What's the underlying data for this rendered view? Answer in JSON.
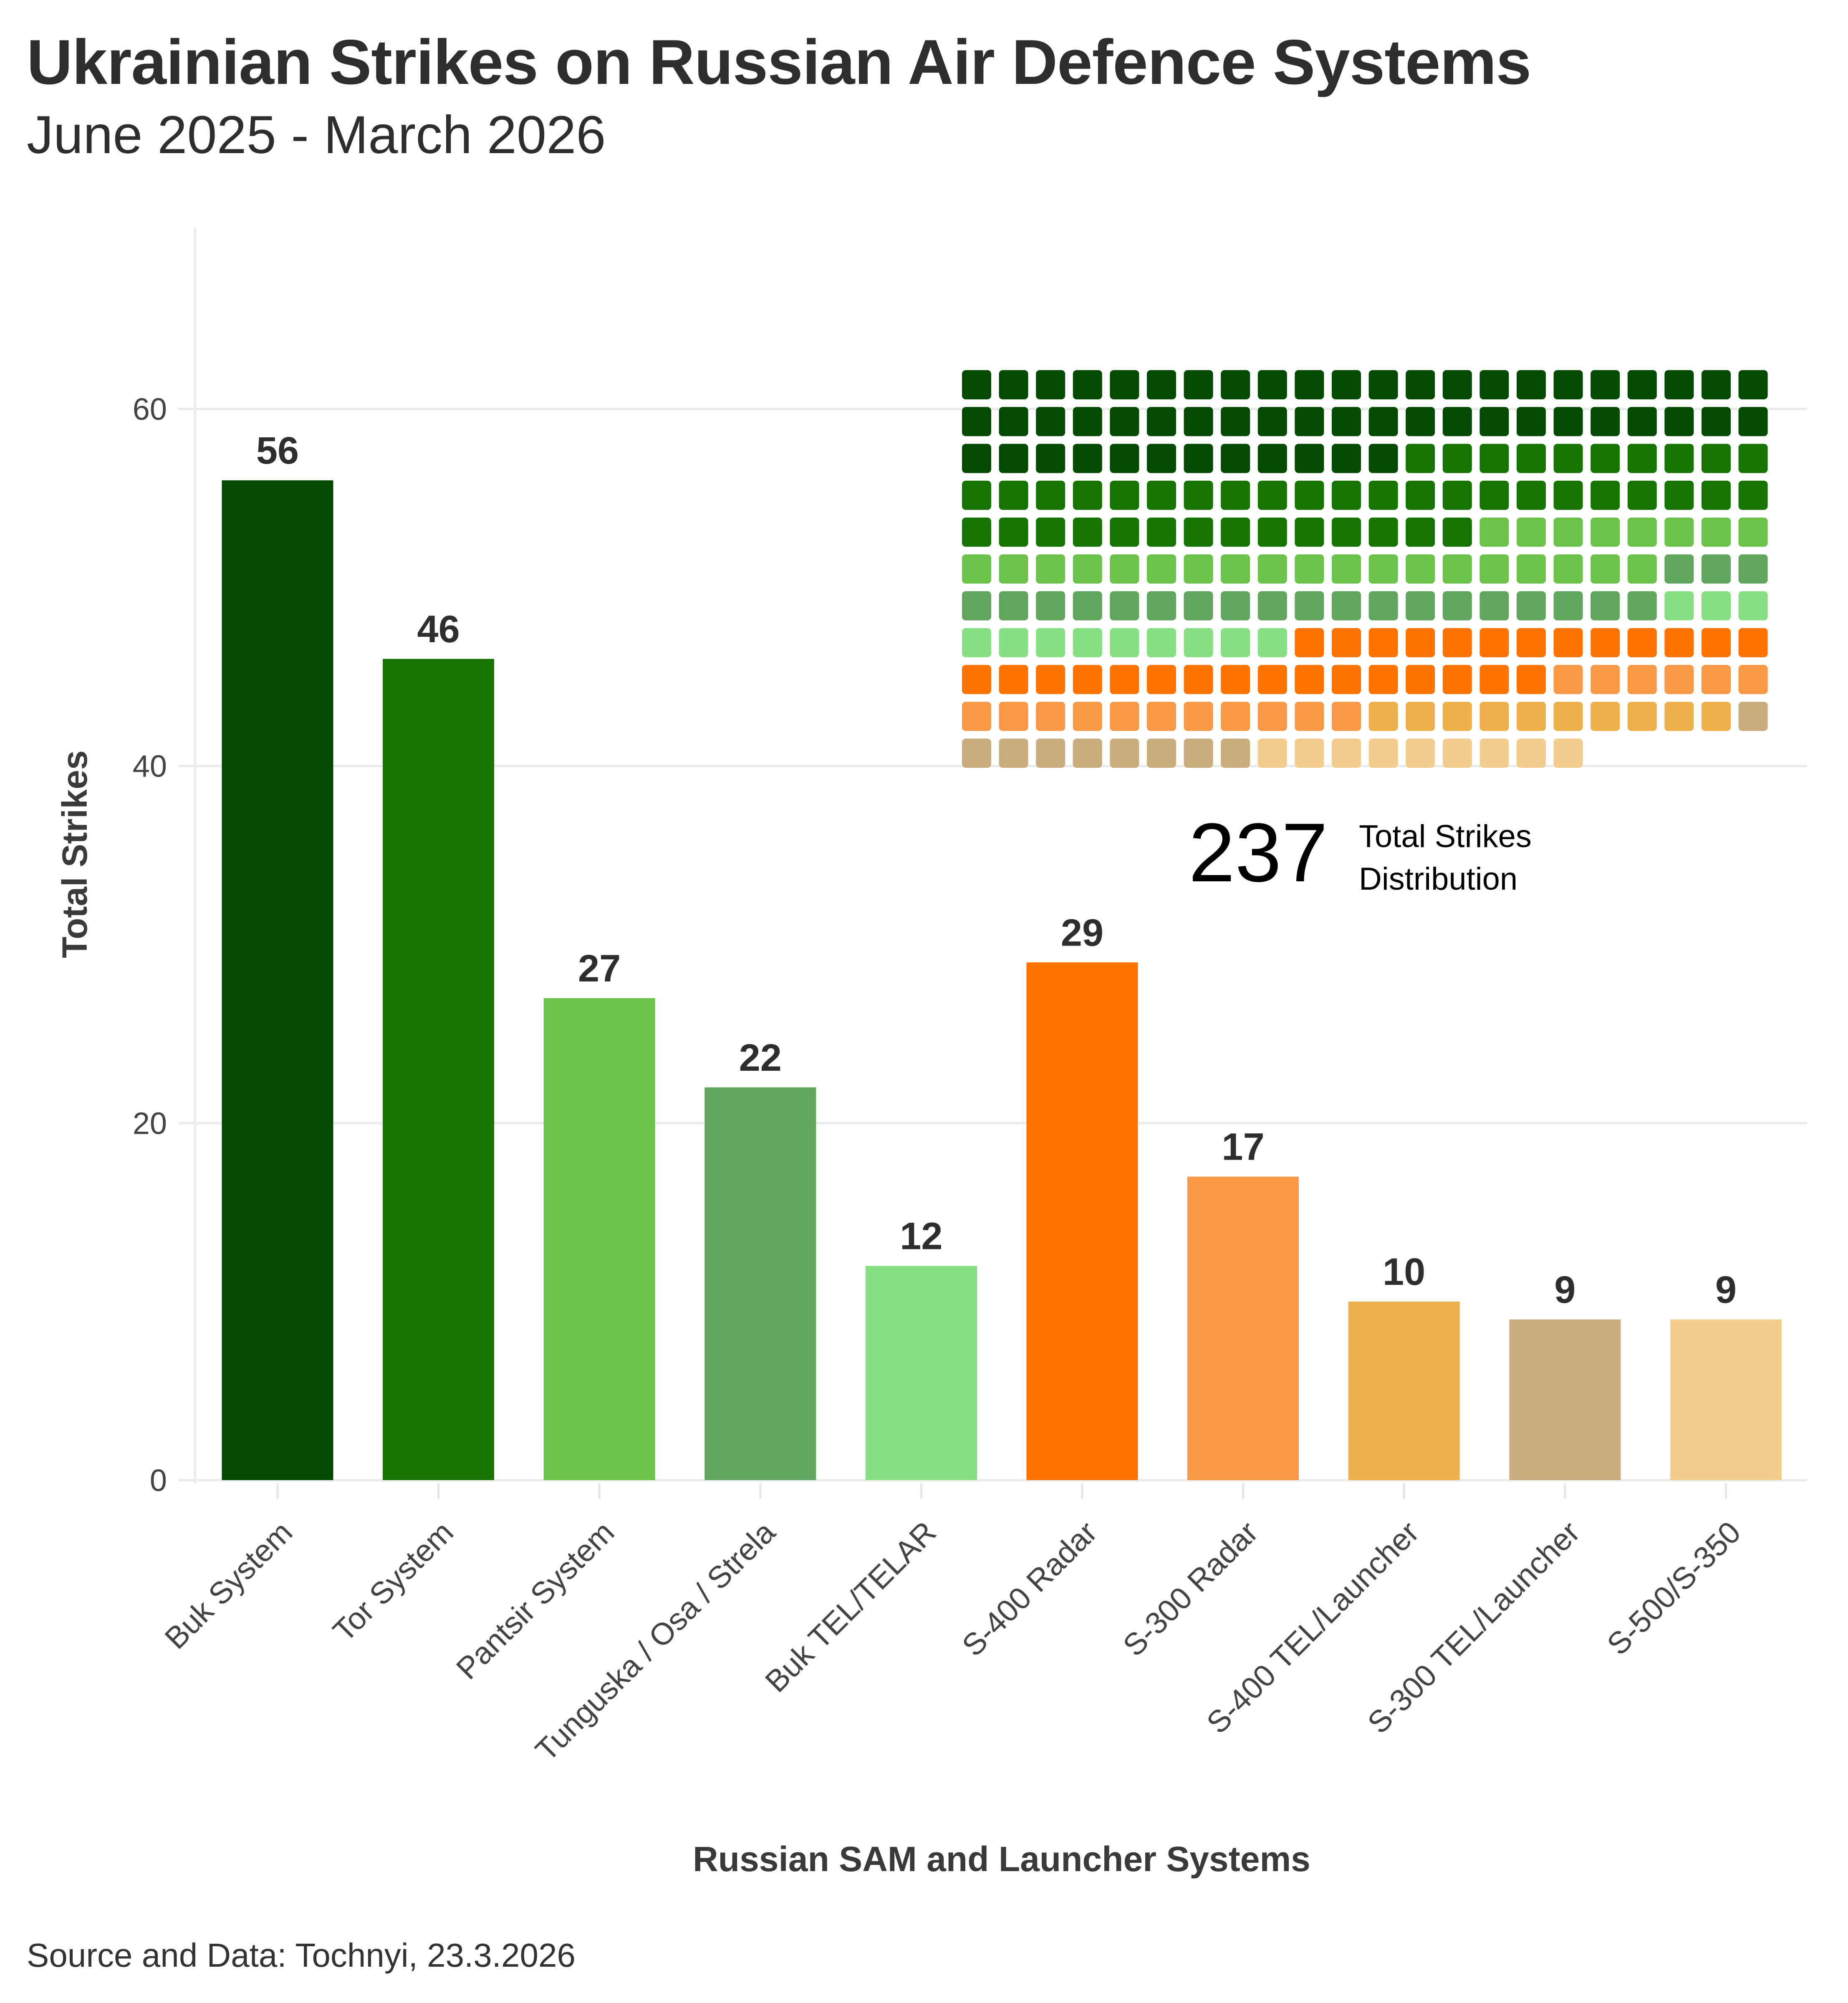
{
  "header": {
    "title": "Ukrainian Strikes on Russian Air Defence Systems",
    "subtitle": "June 2025 - March 2026"
  },
  "footer": {
    "source": "Source and Data: Tochnyi, 23.3.2026"
  },
  "chart_data": {
    "type": "bar",
    "title": "Ukrainian Strikes on Russian Air Defence Systems",
    "subtitle": "June 2025 - March 2026",
    "xlabel": "Russian SAM and Launcher Systems",
    "ylabel": "Total Strikes",
    "ylim": [
      0,
      70
    ],
    "yticks": [
      0,
      20,
      40,
      60
    ],
    "grid": true,
    "categories": [
      "Buk System",
      "Tor System",
      "Pantsir System",
      "Tunguska / Osa / Strela",
      "Buk TEL/TELAR",
      "S-400 Radar",
      "S-300 Radar",
      "S-400 TEL/Launcher",
      "S-300 TEL/Launcher",
      "S-500/S-350"
    ],
    "values": [
      56,
      46,
      27,
      22,
      12,
      29,
      17,
      10,
      9,
      9
    ],
    "colors": [
      "#054a03",
      "#167500",
      "#6cc24a",
      "#62a55f",
      "#88de82",
      "#ff7300",
      "#f99947",
      "#edb04b",
      "#c9ad7e",
      "#f2cd8d"
    ],
    "data_labels": [
      "56",
      "46",
      "27",
      "22",
      "12",
      "29",
      "17",
      "10",
      "9",
      "9"
    ],
    "inset_waffle": {
      "type": "waffle",
      "total": 237,
      "total_label": "237",
      "caption_line1": "Total Strikes",
      "caption_line2": "Distribution",
      "columns": 22,
      "units_per_cell": 1,
      "fill_order": "row-major, categories in bar order",
      "position": "top-right"
    }
  }
}
